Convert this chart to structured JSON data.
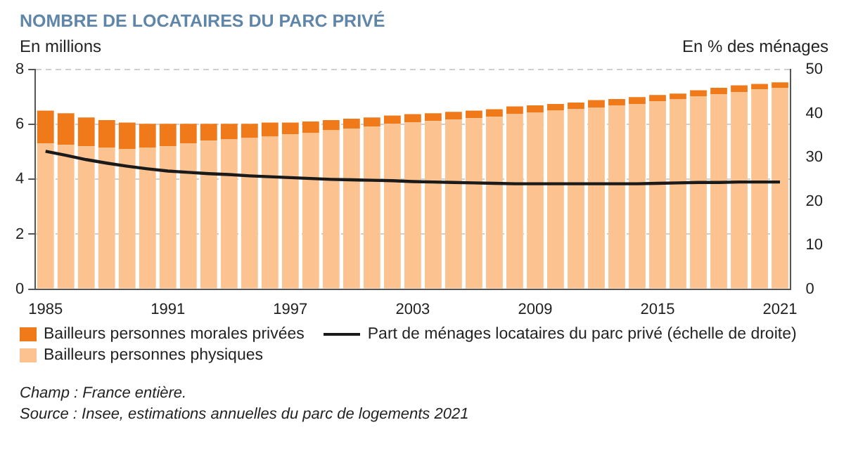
{
  "chart_data": {
    "type": "bar",
    "title": "NOMBRE DE LOCATAIRES DU PARC PRIVÉ",
    "ylabel": "En millions",
    "y2label": "En % des ménages",
    "categories": [
      "1985",
      null,
      null,
      null,
      null,
      null,
      "1991",
      null,
      null,
      null,
      null,
      null,
      "1997",
      null,
      null,
      null,
      null,
      null,
      "2003",
      null,
      null,
      null,
      null,
      null,
      "2009",
      null,
      null,
      null,
      null,
      null,
      "2015",
      null,
      null,
      null,
      null,
      null,
      "2021"
    ],
    "stacked": true,
    "series": [
      {
        "name": "Bailleurs personnes physiques",
        "color": "#fcc290",
        "values": [
          5.31,
          5.26,
          5.21,
          5.16,
          5.11,
          5.16,
          5.21,
          5.31,
          5.41,
          5.46,
          5.51,
          5.56,
          5.64,
          5.7,
          5.79,
          5.85,
          5.93,
          6.03,
          6.08,
          6.13,
          6.18,
          6.23,
          6.28,
          6.38,
          6.43,
          6.52,
          6.57,
          6.61,
          6.7,
          6.75,
          6.85,
          6.93,
          7.03,
          7.1,
          7.18,
          7.28,
          7.34
        ]
      },
      {
        "name": "Bailleurs personnes morales privées",
        "color": "#f07a1a",
        "values": [
          1.2,
          1.15,
          1.05,
          1.0,
          0.96,
          0.87,
          0.82,
          0.72,
          0.62,
          0.57,
          0.52,
          0.51,
          0.43,
          0.41,
          0.37,
          0.36,
          0.33,
          0.3,
          0.3,
          0.28,
          0.28,
          0.28,
          0.28,
          0.28,
          0.27,
          0.23,
          0.23,
          0.28,
          0.23,
          0.25,
          0.23,
          0.2,
          0.22,
          0.24,
          0.25,
          0.2,
          0.2
        ]
      },
      {
        "name": "Part de ménages locataires du parc privé (échelle de droite)",
        "type": "line",
        "axis": "y2",
        "color": "#1a1a1a",
        "values": [
          31.4,
          30.5,
          29.5,
          28.7,
          28.0,
          27.4,
          26.9,
          26.6,
          26.3,
          26.1,
          25.8,
          25.6,
          25.4,
          25.2,
          25.0,
          24.9,
          24.8,
          24.7,
          24.5,
          24.4,
          24.3,
          24.2,
          24.1,
          24.0,
          24.0,
          24.0,
          24.0,
          24.0,
          24.0,
          24.0,
          24.1,
          24.2,
          24.3,
          24.3,
          24.4,
          24.4,
          24.4
        ]
      }
    ],
    "ylim": [
      0,
      8
    ],
    "yticks": [
      0,
      2,
      4,
      6,
      8
    ],
    "y2lim": [
      0,
      50
    ],
    "y2ticks": [
      0,
      10,
      20,
      30,
      40,
      50
    ],
    "grid": "y",
    "legend": "bottom",
    "marker": "none",
    "annotations": [
      "Champ : France entière.",
      "Source : Insee, estimations annuelles du parc de logements 2021"
    ]
  }
}
